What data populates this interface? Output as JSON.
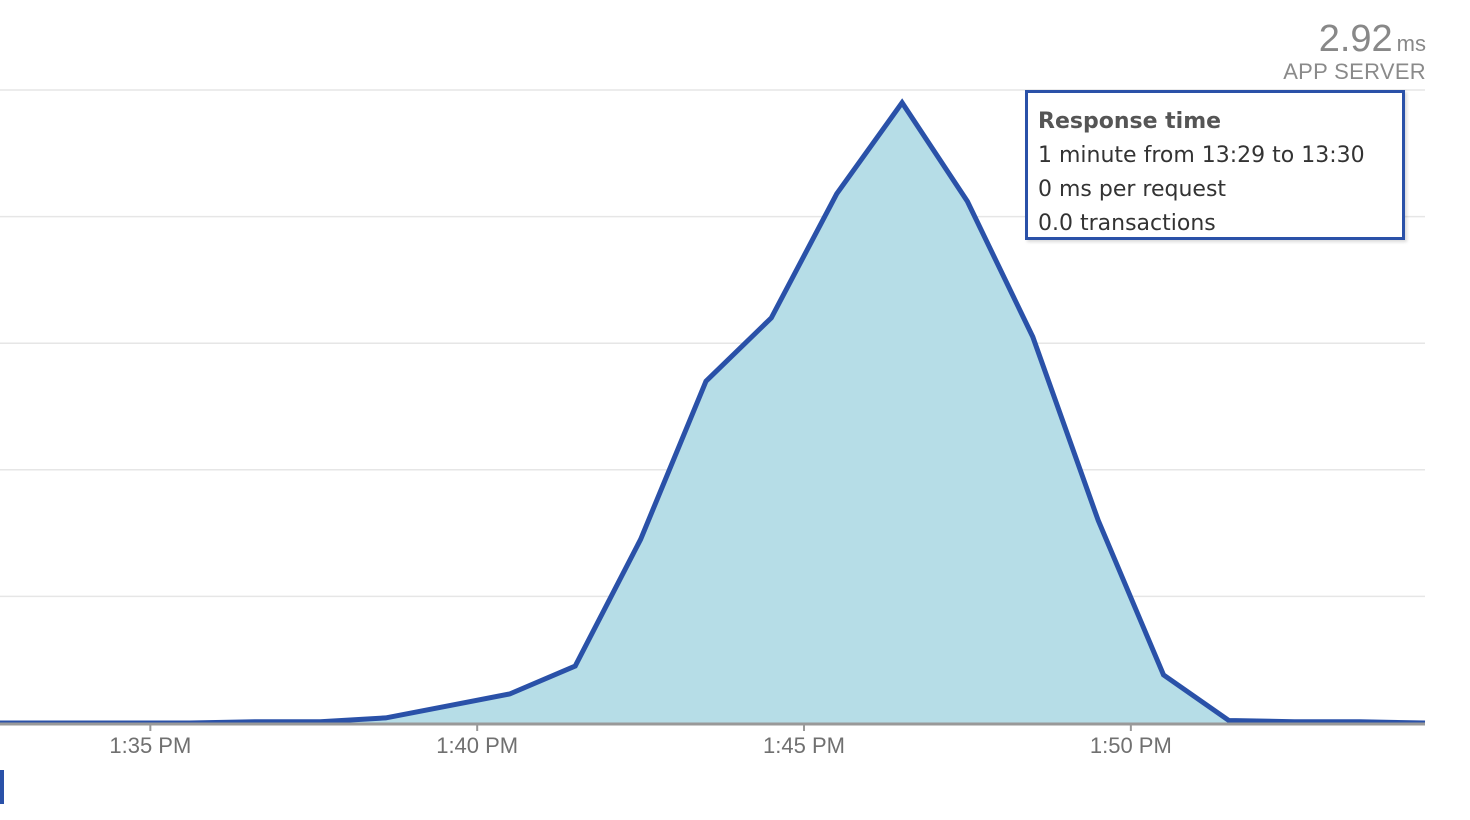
{
  "summary": {
    "value": "2.92",
    "unit": "ms",
    "label": "APP SERVER"
  },
  "tooltip": {
    "title": "Response time",
    "lines": [
      "1 minute from 13:29 to 13:30",
      "0 ms per request",
      "0.0 transactions"
    ]
  },
  "colors": {
    "line": "#2a51a8",
    "fill": "#b6dde7",
    "grid": "#e6e6e6",
    "axis": "#999999",
    "tick_text": "#707070"
  },
  "chart_data": {
    "type": "area",
    "title": "",
    "xlabel": "",
    "ylabel": "",
    "x_tick_labels": [
      "1:35 PM",
      "1:40 PM",
      "1:45 PM",
      "1:50 PM"
    ],
    "x_tick_values": [
      35,
      40,
      45,
      50
    ],
    "xlim": [
      32.7,
      54.5
    ],
    "ylim": [
      0,
      5
    ],
    "y_gridlines": [
      1,
      2,
      3,
      4,
      5
    ],
    "grid": true,
    "legend": "none",
    "series": [
      {
        "x": [
          32.7,
          33.6,
          34.6,
          35.6,
          36.6,
          37.6,
          38.6,
          39.6,
          40.5,
          41.5,
          42.5,
          43.5,
          44.5,
          45.5,
          46.5,
          47.5,
          48.5,
          49.5,
          50.5,
          51.5,
          52.5,
          53.5,
          54.5
        ],
        "values": [
          0.0,
          0.0,
          0.0,
          0.0,
          0.01,
          0.01,
          0.04,
          0.14,
          0.23,
          0.45,
          1.45,
          2.7,
          3.2,
          4.18,
          4.9,
          4.12,
          3.05,
          1.6,
          0.38,
          0.02,
          0.01,
          0.01,
          0.0
        ]
      }
    ]
  }
}
